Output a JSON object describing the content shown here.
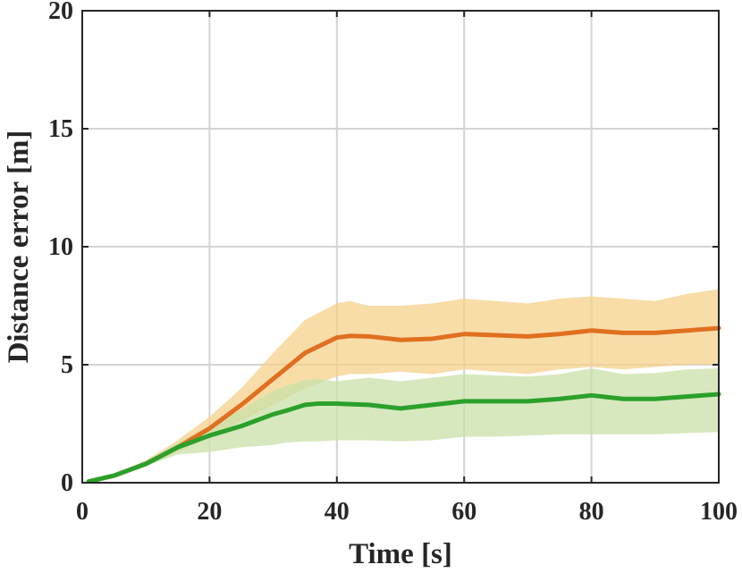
{
  "chart_data": {
    "type": "line",
    "title": "",
    "xlabel": "Time [s]",
    "ylabel": "Distance error [m]",
    "xlim": [
      0,
      100
    ],
    "ylim": [
      0,
      20
    ],
    "xticks": [
      0,
      20,
      40,
      60,
      80,
      100
    ],
    "yticks": [
      0,
      5,
      10,
      15,
      20
    ],
    "grid": true,
    "legend": "none",
    "series": [
      {
        "name": "orange-mean",
        "color": "#E07020",
        "band_color": "#F5D28C",
        "x": [
          1,
          5,
          10,
          15,
          20,
          25,
          30,
          35,
          40,
          42,
          45,
          50,
          55,
          60,
          65,
          70,
          75,
          80,
          85,
          90,
          95,
          100
        ],
        "y": [
          0.05,
          0.3,
          0.8,
          1.5,
          2.3,
          3.3,
          4.4,
          5.5,
          6.15,
          6.22,
          6.2,
          6.05,
          6.1,
          6.3,
          6.25,
          6.2,
          6.3,
          6.45,
          6.35,
          6.35,
          6.45,
          6.55
        ],
        "lower": [
          0.03,
          0.25,
          0.7,
          1.3,
          1.9,
          2.6,
          3.3,
          4.0,
          4.5,
          4.6,
          4.6,
          4.7,
          4.6,
          4.8,
          4.7,
          4.6,
          4.8,
          4.9,
          4.8,
          4.9,
          5.0,
          5.0
        ],
        "upper": [
          0.07,
          0.35,
          0.95,
          1.8,
          2.8,
          4.0,
          5.5,
          6.9,
          7.6,
          7.7,
          7.5,
          7.5,
          7.6,
          7.8,
          7.7,
          7.6,
          7.8,
          7.9,
          7.8,
          7.7,
          8.0,
          8.2
        ]
      },
      {
        "name": "green-mean",
        "color": "#2BA02B",
        "band_color": "#C9E0A8",
        "x": [
          1,
          5,
          10,
          15,
          20,
          25,
          30,
          32,
          35,
          37,
          40,
          45,
          50,
          55,
          60,
          65,
          70,
          75,
          80,
          85,
          90,
          95,
          100
        ],
        "y": [
          0.05,
          0.3,
          0.8,
          1.5,
          2.0,
          2.4,
          2.9,
          3.05,
          3.3,
          3.35,
          3.35,
          3.3,
          3.15,
          3.3,
          3.45,
          3.45,
          3.45,
          3.55,
          3.7,
          3.55,
          3.55,
          3.65,
          3.75
        ],
        "lower": [
          0.03,
          0.25,
          0.7,
          1.2,
          1.3,
          1.5,
          1.6,
          1.7,
          1.75,
          1.75,
          1.8,
          1.8,
          1.75,
          1.8,
          1.95,
          1.95,
          2.0,
          2.05,
          2.05,
          2.05,
          2.05,
          2.1,
          2.15
        ],
        "upper": [
          0.07,
          0.35,
          0.9,
          1.7,
          2.4,
          3.1,
          3.9,
          4.1,
          4.35,
          4.4,
          4.3,
          4.45,
          4.3,
          4.45,
          4.6,
          4.55,
          4.5,
          4.6,
          4.85,
          4.6,
          4.65,
          4.8,
          4.85
        ]
      }
    ]
  }
}
